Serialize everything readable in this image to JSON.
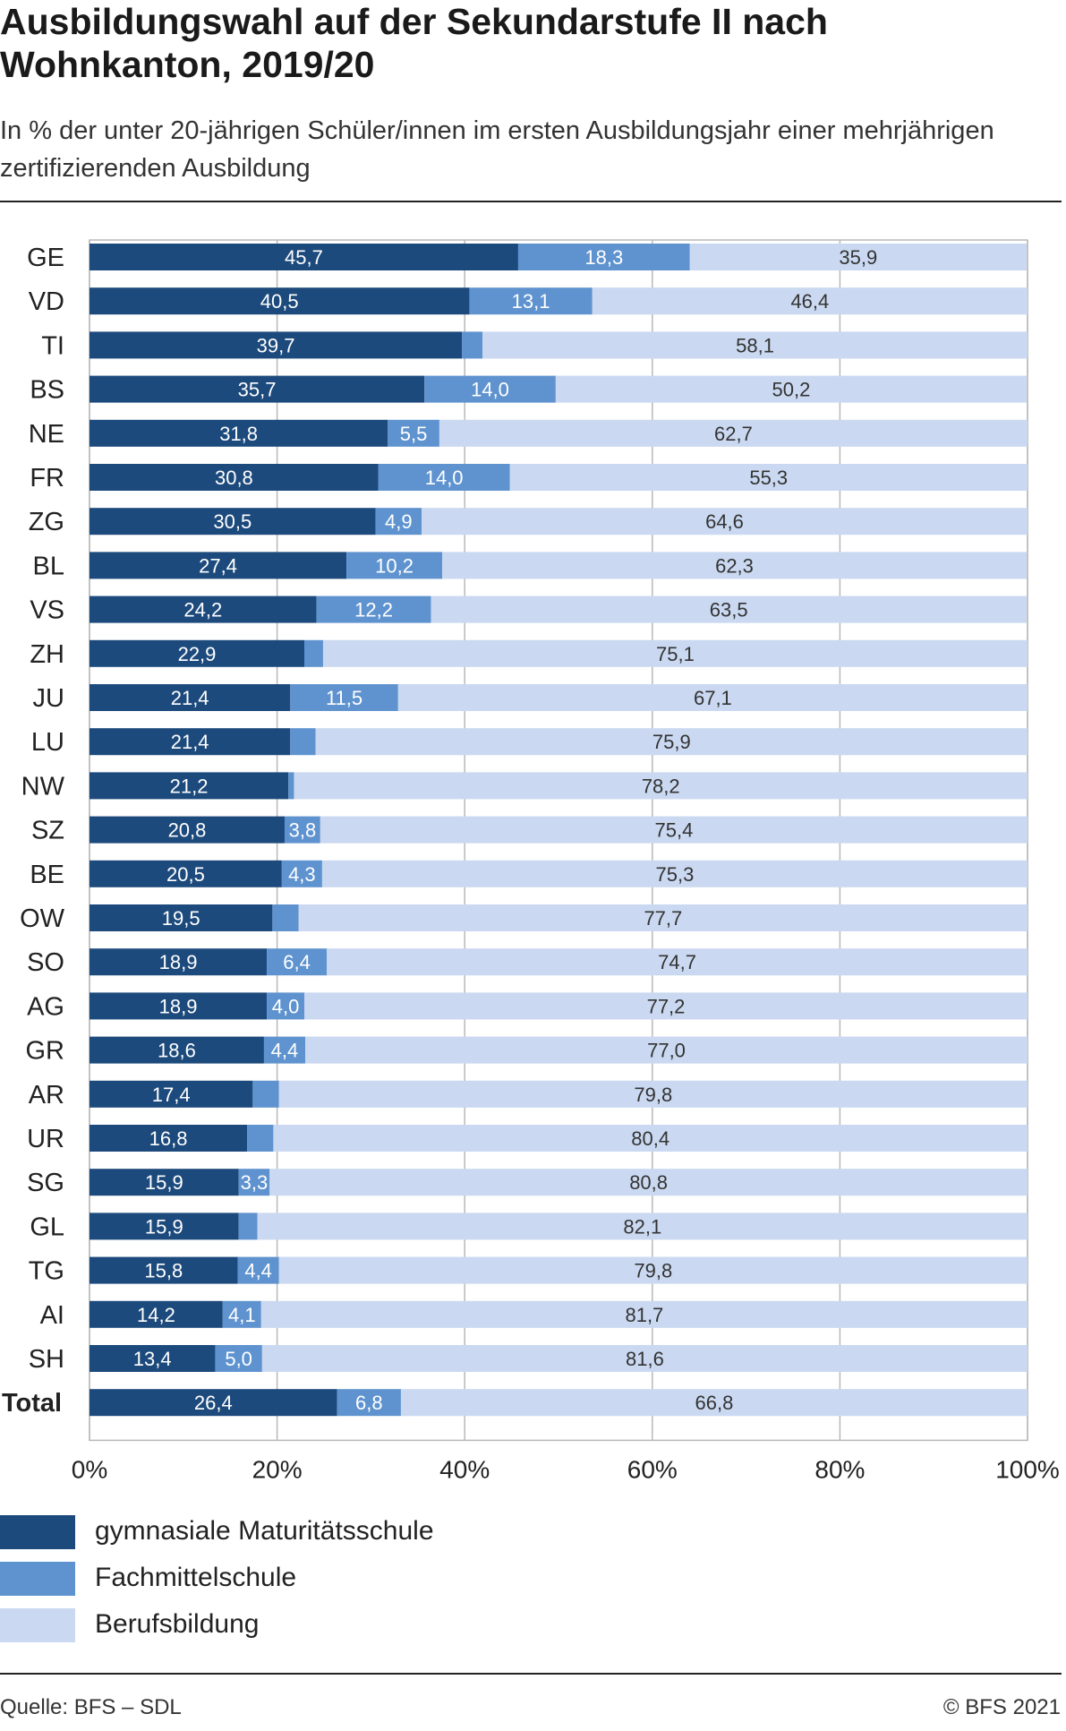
{
  "title": "Ausbildungswahl auf der Sekundarstufe II nach Wohnkanton, 2019/20",
  "subtitle": "In % der unter 20-jährigen Schüler/innen im ersten Ausbildungsjahr einer mehrjährigen zertifizierenden Ausbildung",
  "footer": {
    "source": "Quelle: BFS – SDL",
    "copyright": "© BFS 2021"
  },
  "colors": {
    "gymnasial": "#1d4a7c",
    "fachmittel": "#5f93cf",
    "beruf": "#cad9f1",
    "track": "#efefef",
    "grid": "#b9b9b9"
  },
  "chart_data": {
    "type": "bar",
    "orientation": "horizontal",
    "stacked": true,
    "categories": [
      "GE",
      "VD",
      "TI",
      "BS",
      "NE",
      "FR",
      "ZG",
      "BL",
      "VS",
      "ZH",
      "JU",
      "LU",
      "NW",
      "SZ",
      "BE",
      "OW",
      "SO",
      "AG",
      "GR",
      "AR",
      "UR",
      "SG",
      "GL",
      "TG",
      "AI",
      "SH",
      "Total"
    ],
    "series": [
      {
        "name": "gymnasiale Maturitätsschule",
        "values": [
          45.7,
          40.5,
          39.7,
          35.7,
          31.8,
          30.8,
          30.5,
          27.4,
          24.2,
          22.9,
          21.4,
          21.4,
          21.2,
          20.8,
          20.5,
          19.5,
          18.9,
          18.9,
          18.6,
          17.4,
          16.8,
          15.9,
          15.9,
          15.8,
          14.2,
          13.4,
          26.4
        ],
        "labels": [
          "45,7",
          "40,5",
          "39,7",
          "35,7",
          "31,8",
          "30,8",
          "30,5",
          "27,4",
          "24,2",
          "22,9",
          "21,4",
          "21,4",
          "21,2",
          "20,8",
          "20,5",
          "19,5",
          "18,9",
          "18,9",
          "18,6",
          "17,4",
          "16,8",
          "15,9",
          "15,9",
          "15,8",
          "14,2",
          "13,4",
          "26,4"
        ]
      },
      {
        "name": "Fachmittelschule",
        "values": [
          18.3,
          13.1,
          2.2,
          14.0,
          5.5,
          14.0,
          4.9,
          10.2,
          12.2,
          2.0,
          11.5,
          2.7,
          0.6,
          3.8,
          4.3,
          2.8,
          6.4,
          4.0,
          4.4,
          2.8,
          2.8,
          3.3,
          2.0,
          4.4,
          4.1,
          5.0,
          6.8
        ],
        "labels": [
          "18,3",
          "13,1",
          "",
          "14,0",
          "5,5",
          "14,0",
          "4,9",
          "10,2",
          "12,2",
          "",
          "11,5",
          "",
          "",
          "3,8",
          "4,3",
          "",
          "6,4",
          "4,0",
          "4,4",
          "",
          "",
          "3,3",
          "",
          "4,4",
          "4,1",
          "5,0",
          "6,8"
        ]
      },
      {
        "name": "Berufsbildung",
        "values": [
          35.9,
          46.4,
          58.1,
          50.2,
          62.7,
          55.3,
          64.6,
          62.3,
          63.5,
          75.1,
          67.1,
          75.9,
          78.2,
          75.4,
          75.3,
          77.7,
          74.7,
          77.2,
          77.0,
          79.8,
          80.4,
          80.8,
          82.1,
          79.8,
          81.7,
          81.6,
          66.8
        ],
        "labels": [
          "35,9",
          "46,4",
          "58,1",
          "50,2",
          "62,7",
          "55,3",
          "64,6",
          "62,3",
          "63,5",
          "75,1",
          "67,1",
          "75,9",
          "78,2",
          "75,4",
          "75,3",
          "77,7",
          "74,7",
          "77,2",
          "77,0",
          "79,8",
          "80,4",
          "80,8",
          "82,1",
          "79,8",
          "81,7",
          "81,6",
          "66,8"
        ]
      }
    ],
    "xlim": [
      0,
      100
    ],
    "xticks": [
      "0%",
      "20%",
      "40%",
      "60%",
      "80%",
      "100%"
    ],
    "xtick_values": [
      0,
      20,
      40,
      60,
      80,
      100
    ],
    "grid": true,
    "legend": "bottom"
  }
}
